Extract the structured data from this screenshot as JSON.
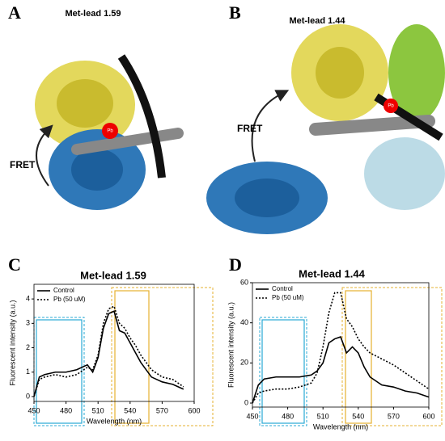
{
  "figure": {
    "panels": [
      "A",
      "B",
      "C",
      "D"
    ],
    "structure_titles": [
      "Met-lead 1.59",
      "Met-lead 1.44"
    ],
    "fret_labels": [
      "FRET",
      "FRET"
    ],
    "pb_labels": [
      "Pb",
      "Pb"
    ]
  },
  "chart_data": [
    {
      "type": "line",
      "title": "Met-lead 1.59",
      "x_label": "Wavelength (nm)",
      "y_label": "Fluorescent intensity (a.u.)",
      "x": [
        450,
        455,
        460,
        470,
        480,
        490,
        500,
        505,
        510,
        515,
        520,
        525,
        530,
        535,
        540,
        545,
        550,
        560,
        570,
        580,
        590,
        600
      ],
      "series": [
        {
          "name": "Control",
          "color": "#000000",
          "dash": "solid",
          "values": [
            0,
            0.8,
            0.9,
            1.0,
            1.0,
            1.1,
            1.3,
            1.0,
            1.6,
            2.8,
            3.4,
            3.5,
            2.7,
            2.6,
            2.2,
            1.8,
            1.4,
            0.8,
            0.6,
            0.5,
            0.3,
            null
          ]
        },
        {
          "name": "Pb (50 uM)",
          "color": "#000000",
          "dash": "dotted",
          "values": [
            0,
            0.7,
            0.8,
            0.9,
            0.8,
            0.9,
            1.2,
            1.1,
            1.7,
            3.0,
            3.6,
            3.7,
            3.0,
            2.8,
            2.4,
            2.1,
            1.7,
            1.1,
            0.8,
            0.7,
            0.4,
            null
          ]
        }
      ],
      "xlim": [
        450,
        600
      ],
      "xticks": [
        450,
        480,
        510,
        540,
        570,
        600
      ],
      "ylim": [
        -0.2,
        4.6
      ],
      "yticks": [
        0,
        1,
        2,
        3,
        4
      ],
      "legend": "upper left"
    },
    {
      "type": "line",
      "title": "Met-lead 1.44",
      "x_label": "Wavelength (nm)",
      "y_label": "Fluorescent intensity (a.u.)",
      "x": [
        450,
        455,
        460,
        470,
        480,
        490,
        500,
        505,
        510,
        515,
        520,
        525,
        530,
        535,
        540,
        545,
        550,
        560,
        570,
        580,
        590,
        600
      ],
      "series": [
        {
          "name": "Control",
          "color": "#000000",
          "dash": "solid",
          "values": [
            0,
            9,
            12,
            13,
            13,
            13,
            14,
            16,
            20,
            30,
            32,
            33,
            25,
            28,
            25,
            18,
            13,
            9,
            8,
            6,
            5,
            3
          ]
        },
        {
          "name": "Pb (50 uM)",
          "color": "#000000",
          "dash": "dotted",
          "values": [
            0,
            5,
            6,
            7,
            7,
            8,
            10,
            15,
            28,
            45,
            55,
            55,
            42,
            38,
            32,
            28,
            25,
            22,
            19,
            15,
            11,
            7
          ]
        }
      ],
      "xlim": [
        450,
        600
      ],
      "xticks": [
        450,
        480,
        510,
        540,
        570,
        600
      ],
      "ylim": [
        -2,
        60
      ],
      "yticks": [
        0,
        20,
        40,
        60
      ],
      "legend": "upper left"
    }
  ]
}
